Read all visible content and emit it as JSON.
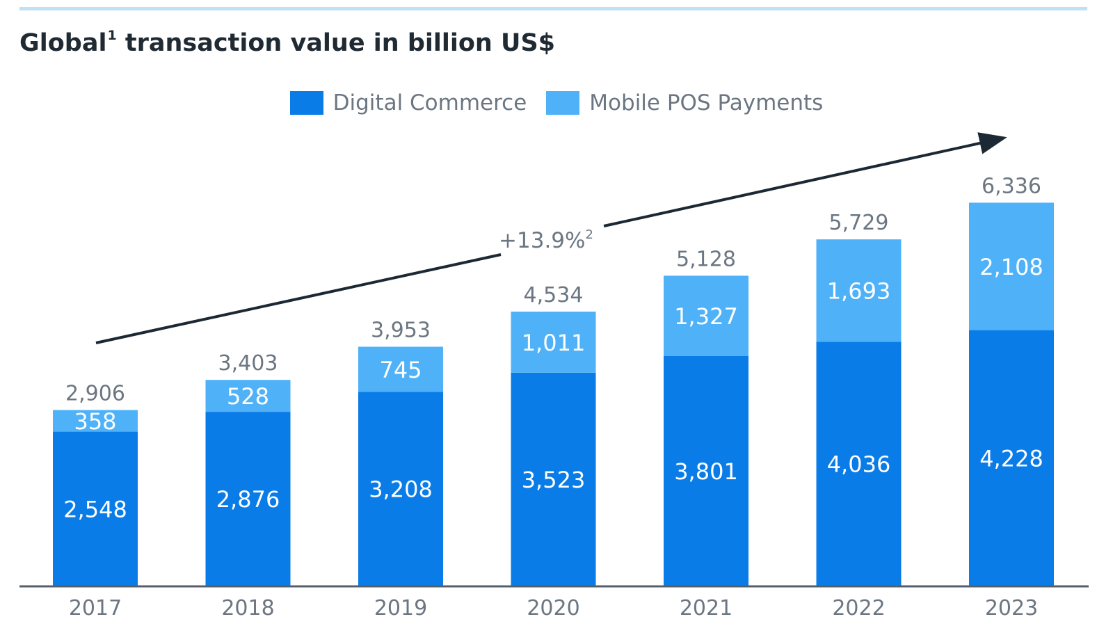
{
  "title": {
    "main": "Global",
    "sup": "1",
    "rest": " transaction value in billion US$"
  },
  "legend": [
    {
      "label": "Digital Commerce",
      "color": "#0a7ce8"
    },
    {
      "label": "Mobile POS Payments",
      "color": "#4fb2f8"
    }
  ],
  "annotation": {
    "text": "+13.9%",
    "sup": "2"
  },
  "colors": {
    "digital": "#0a7ce8",
    "mobile": "#4fb2f8",
    "axis": "#555f69",
    "arrow": "#1c2833",
    "total_label": "#6b7682",
    "inner_label": "#ffffff"
  },
  "chart_data": {
    "type": "bar",
    "stacked": true,
    "categories": [
      "2017",
      "2018",
      "2019",
      "2020",
      "2021",
      "2022",
      "2023"
    ],
    "series": [
      {
        "name": "Digital Commerce",
        "values": [
          2548,
          2876,
          3208,
          3523,
          3801,
          4036,
          4228
        ]
      },
      {
        "name": "Mobile POS Payments",
        "values": [
          358,
          528,
          745,
          1011,
          1327,
          1693,
          2108
        ]
      }
    ],
    "totals": [
      2906,
      3403,
      3953,
      4534,
      5128,
      5729,
      6336
    ],
    "value_labels": {
      "digital": [
        "2,548",
        "2,876",
        "3,208",
        "3,523",
        "3,801",
        "4,036",
        "4,228"
      ],
      "mobile": [
        "358",
        "528",
        "745",
        "1,011",
        "1,327",
        "1,693",
        "2,108"
      ],
      "totals": [
        "2,906",
        "3,403",
        "3,953",
        "4,534",
        "5,128",
        "5,729",
        "6,336"
      ]
    },
    "title": "Global transaction value in billion US$",
    "xlabel": "",
    "ylabel": "",
    "grid": false,
    "legend_position": "top-center"
  }
}
